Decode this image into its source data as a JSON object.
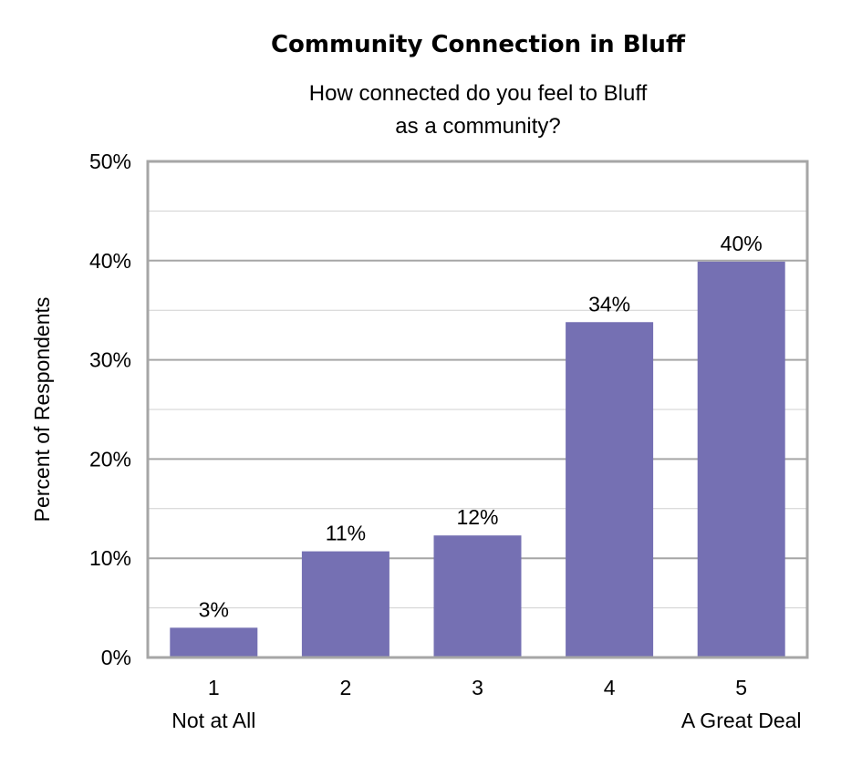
{
  "chart_data": {
    "type": "bar",
    "title": "Community Connection in Bluff",
    "subtitle": [
      "How connected do you feel to Bluff",
      "as a community?"
    ],
    "xlabel": "",
    "ylabel": "Percent of Respondents",
    "categories": [
      "1",
      "2",
      "3",
      "4",
      "5"
    ],
    "category_sublabels": [
      "Not at All",
      "",
      "",
      "",
      "A Great Deal"
    ],
    "values": [
      3.0,
      10.7,
      12.3,
      33.8,
      39.9
    ],
    "data_labels": [
      "3%",
      "11%",
      "12%",
      "34%",
      "40%"
    ],
    "ylim": [
      0,
      50
    ],
    "yticks": [
      0,
      10,
      20,
      30,
      40,
      50
    ],
    "ytick_labels": [
      "0%",
      "10%",
      "20%",
      "30%",
      "40%",
      "50%"
    ],
    "grid": true,
    "minor_grid_step": 5,
    "legend": "none",
    "colors": {
      "bar": "#7570B3",
      "grid": "#D0D0D0",
      "frame": "#A6A6A6"
    }
  }
}
